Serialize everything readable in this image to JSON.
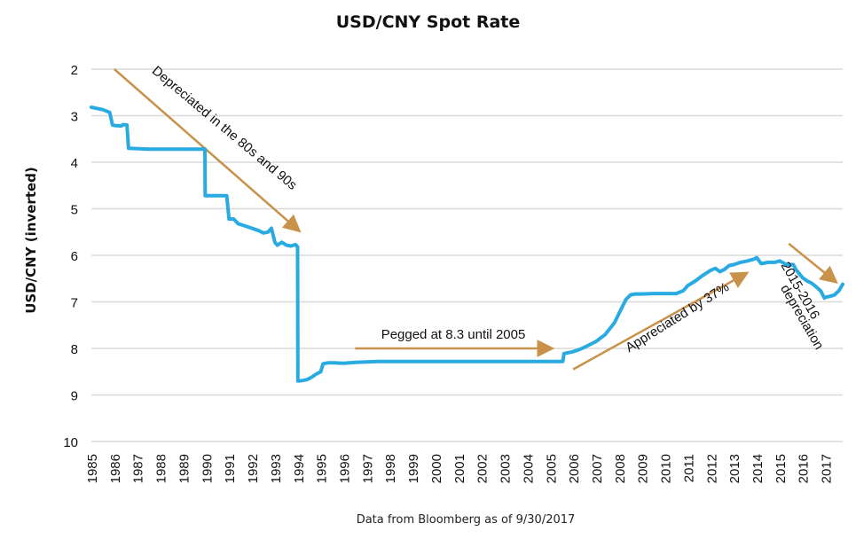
{
  "chart_data": {
    "type": "line",
    "title": "USD/CNY Spot Rate",
    "ylabel": "USD/CNY (inverted)",
    "xlabel": "",
    "source_note": "Data from Bloomberg as of 9/30/2017",
    "y_inverted": true,
    "ylim": [
      2,
      10
    ],
    "yticks": [
      2,
      3,
      4,
      5,
      6,
      7,
      8,
      9,
      10
    ],
    "xlim": [
      1985,
      2017.75
    ],
    "xticks": [
      "1985",
      "1986",
      "1987",
      "1988",
      "1989",
      "1990",
      "1991",
      "1992",
      "1993",
      "1994",
      "1995",
      "1996",
      "1997",
      "1998",
      "1999",
      "2000",
      "2001",
      "2002",
      "2003",
      "2004",
      "2005",
      "2006",
      "2007",
      "2008",
      "2009",
      "2010",
      "2011",
      "2012",
      "2013",
      "2014",
      "2015",
      "2016",
      "2017"
    ],
    "grid": true,
    "line_color": "#29abe2",
    "arrow_color": "#c8924a",
    "series": [
      {
        "name": "",
        "x": [
          1985.0,
          1985.5,
          1985.8,
          1985.92,
          1986.0,
          1986.3,
          1986.38,
          1986.55,
          1986.62,
          1987.5,
          1988.5,
          1989.5,
          1989.95,
          1989.96,
          1990.3,
          1990.9,
          1991.0,
          1991.2,
          1991.4,
          1991.7,
          1992.0,
          1992.3,
          1992.5,
          1992.7,
          1992.85,
          1993.0,
          1993.1,
          1993.3,
          1993.5,
          1993.7,
          1993.9,
          1993.99,
          1994.0,
          1994.2,
          1994.4,
          1994.6,
          1994.8,
          1995.0,
          1995.1,
          1995.3,
          1995.6,
          1996.0,
          1996.5,
          1997.0,
          1997.5,
          1998.0,
          1999.0,
          2000.0,
          2001.0,
          2002.0,
          2003.0,
          2004.0,
          2005.3,
          2005.55,
          2005.6,
          2006.0,
          2006.3,
          2006.6,
          2007.0,
          2007.4,
          2007.8,
          2008.0,
          2008.3,
          2008.5,
          2008.7,
          2009.0,
          2009.5,
          2010.0,
          2010.5,
          2010.8,
          2011.0,
          2011.3,
          2011.6,
          2012.0,
          2012.2,
          2012.4,
          2012.6,
          2012.8,
          2013.0,
          2013.3,
          2013.6,
          2013.9,
          2014.0,
          2014.2,
          2014.5,
          2014.8,
          2015.0,
          2015.3,
          2015.6,
          2015.7,
          2016.0,
          2016.2,
          2016.4,
          2016.6,
          2016.8,
          2016.95,
          2017.0,
          2017.2,
          2017.4,
          2017.6,
          2017.75
        ],
        "y": [
          2.82,
          2.87,
          2.93,
          3.2,
          3.21,
          3.22,
          3.19,
          3.2,
          3.7,
          3.72,
          3.72,
          3.72,
          3.72,
          4.72,
          4.72,
          4.72,
          5.22,
          5.22,
          5.32,
          5.37,
          5.42,
          5.47,
          5.52,
          5.5,
          5.42,
          5.72,
          5.78,
          5.72,
          5.78,
          5.8,
          5.77,
          5.82,
          8.7,
          8.69,
          8.67,
          8.62,
          8.55,
          8.5,
          8.33,
          8.31,
          8.31,
          8.32,
          8.3,
          8.29,
          8.28,
          8.28,
          8.28,
          8.28,
          8.28,
          8.28,
          8.28,
          8.28,
          8.28,
          8.28,
          8.11,
          8.07,
          8.02,
          7.95,
          7.85,
          7.7,
          7.45,
          7.25,
          6.95,
          6.85,
          6.83,
          6.83,
          6.82,
          6.82,
          6.82,
          6.76,
          6.65,
          6.56,
          6.45,
          6.32,
          6.28,
          6.35,
          6.3,
          6.22,
          6.2,
          6.15,
          6.12,
          6.08,
          6.05,
          6.18,
          6.15,
          6.15,
          6.12,
          6.2,
          6.2,
          6.3,
          6.48,
          6.55,
          6.6,
          6.68,
          6.77,
          6.92,
          6.9,
          6.88,
          6.85,
          6.75,
          6.62
        ]
      }
    ],
    "annotations": [
      {
        "text": "Depreciated in the 80s and 90s",
        "from": [
          1986.0,
          2.0
        ],
        "to": [
          1994.0,
          5.45
        ]
      },
      {
        "text": "Pegged at 8.3 until 2005",
        "from": [
          1996.5,
          8.0
        ],
        "to": [
          2005.0,
          8.0
        ]
      },
      {
        "text": "Appreciated by 37%",
        "from": [
          2006.0,
          8.45
        ],
        "to": [
          2013.5,
          6.4
        ]
      },
      {
        "text": "2015-2016",
        "from": [
          2015.4,
          5.75
        ],
        "to": [
          2017.4,
          6.55
        ]
      },
      {
        "text": "depreciation",
        "from": null,
        "to": null
      }
    ]
  }
}
